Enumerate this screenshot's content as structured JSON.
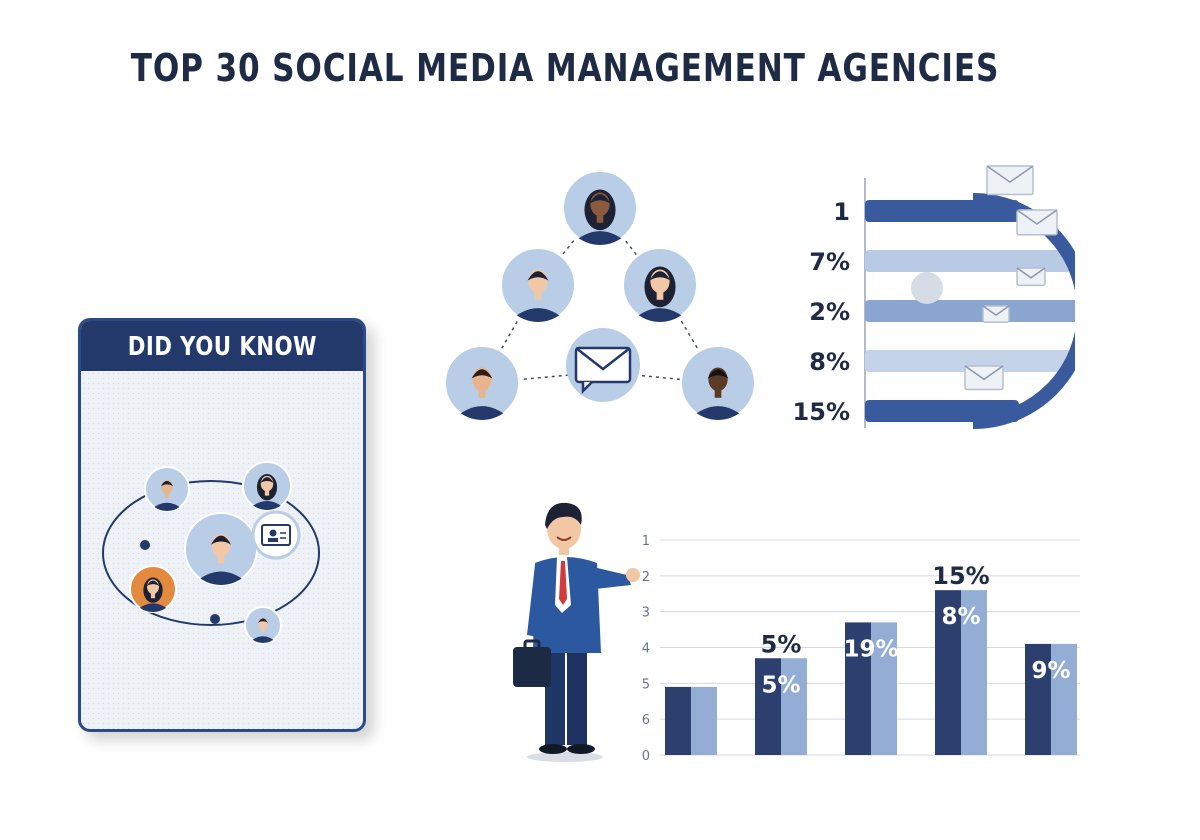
{
  "title": "TOP 30 SOCIAL MEDIA MANAGEMENT AGENCIES",
  "card": {
    "heading": "DID YOU KNOW"
  },
  "colors": {
    "navy": "#24396b",
    "dark_bar": "#2c3f6e",
    "light_bar": "#93add4",
    "circle_bg": "#b9cde6",
    "accent_orange": "#e38a3e"
  },
  "icons": [
    "person-avatar-icon",
    "envelope-icon",
    "chat-bubble-icon",
    "id-card-icon",
    "briefcase-icon"
  ],
  "chart_data": [
    {
      "type": "bar",
      "orientation": "horizontal",
      "labels": [
        "1",
        "7%",
        "2%",
        "8%",
        "15%"
      ],
      "bar_colors": [
        "#3a5a9e",
        "#b9cbe4",
        "#8aa6d0",
        "#c4d3e8",
        "#3a5a9e"
      ]
    },
    {
      "type": "bar",
      "y_tick_labels": [
        "1",
        "2",
        "3",
        "4",
        "5",
        "6",
        "0"
      ],
      "ylim": [
        0,
        6
      ],
      "series": [
        {
          "values": [
            1.9,
            2.7,
            3.7,
            4.6,
            3.1
          ]
        },
        {
          "values": [
            1.9,
            2.7,
            3.7,
            4.6,
            3.1
          ]
        }
      ],
      "data_labels": [
        {
          "top": "",
          "inner": ""
        },
        {
          "top": "5%",
          "inner": "5%"
        },
        {
          "top": "",
          "inner": "19%"
        },
        {
          "top": "15%",
          "inner": "8%"
        },
        {
          "top": "",
          "inner": "9%"
        }
      ]
    }
  ]
}
